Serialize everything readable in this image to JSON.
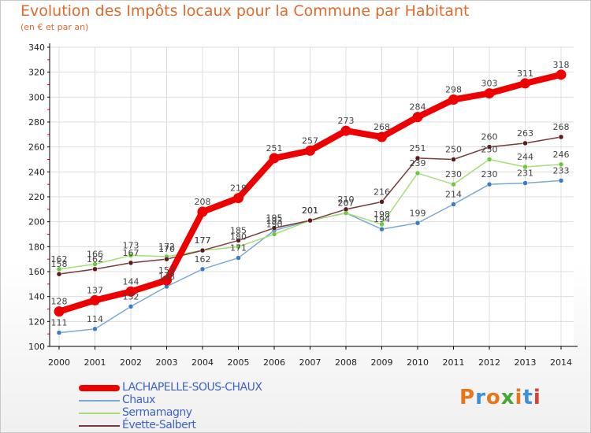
{
  "colors": {
    "title": "#e06a2c",
    "axis": "#000000",
    "grid": "#dddddd",
    "tick_red": "#ff0000",
    "label": "#444444",
    "legend_text": "#3f63c4"
  },
  "brand": {
    "text": "Proxiti",
    "letter_colors": [
      "#e8751a",
      "#3d8fd6",
      "#e8751a",
      "#44a832",
      "#e8751a",
      "#3d8fd6",
      "#e23b2f"
    ]
  },
  "chart_data": {
    "type": "line",
    "title": "Evolution des Impôts locaux pour la Commune par Habitant",
    "subtitle": "(en € et par an)",
    "xlabel": "",
    "ylabel": "",
    "x": [
      "2000",
      "2001",
      "2002",
      "2003",
      "2004",
      "2005",
      "2006",
      "2007",
      "2008",
      "2009",
      "2010",
      "2011",
      "2012",
      "2013",
      "2014"
    ],
    "ylim": [
      100,
      340
    ],
    "yticks": [
      100,
      120,
      140,
      160,
      180,
      200,
      220,
      240,
      260,
      280,
      300,
      320,
      340
    ],
    "grid": true,
    "legend_position": "bottom-left",
    "series": [
      {
        "name": "LACHAPELLE-SOUS-CHAUX",
        "color": "#ee0000",
        "style": "thick",
        "values": [
          128,
          137,
          144,
          153,
          208,
          219,
          251,
          257,
          273,
          268,
          284,
          298,
          303,
          311,
          318
        ],
        "labels": [
          "128",
          "137",
          "144",
          "153",
          "208",
          "219",
          "251",
          "257",
          "273",
          "268",
          "284",
          "298",
          "303",
          "311",
          "318"
        ]
      },
      {
        "name": "Chaux",
        "color": "#7aa8d6",
        "marker": "#3d7cc0",
        "style": "thin",
        "values": [
          111,
          114,
          132,
          148,
          162,
          171,
          193,
          201,
          207,
          194,
          199,
          214,
          230,
          231,
          233
        ],
        "labels": [
          "111",
          "114",
          "132",
          "148",
          "162",
          "171",
          "193",
          "201",
          "207",
          "194",
          "199",
          "214",
          "230",
          "231",
          "233"
        ]
      },
      {
        "name": "Sermamagny",
        "color": "#a8dc78",
        "marker": "#6cc83c",
        "style": "thin",
        "values": [
          162,
          166,
          173,
          172,
          177,
          180,
          190,
          201,
          207,
          198,
          239,
          230,
          250,
          244,
          246
        ],
        "labels": [
          "162",
          "166",
          "173",
          "172",
          "177",
          "180",
          "190",
          "201",
          "207",
          "198",
          "239",
          "230",
          "250",
          "244",
          "246"
        ]
      },
      {
        "name": "Évette-Salbert",
        "color": "#7a3a3a",
        "marker": "#5a1a1a",
        "style": "thin",
        "values": [
          158,
          162,
          167,
          170,
          177,
          185,
          195,
          201,
          210,
          216,
          251,
          250,
          260,
          263,
          268
        ],
        "labels": [
          "158",
          "162",
          "167",
          "170",
          "177",
          "185",
          "195",
          "201",
          "210",
          "216",
          "251",
          "250",
          "260",
          "263",
          "268"
        ]
      }
    ]
  }
}
